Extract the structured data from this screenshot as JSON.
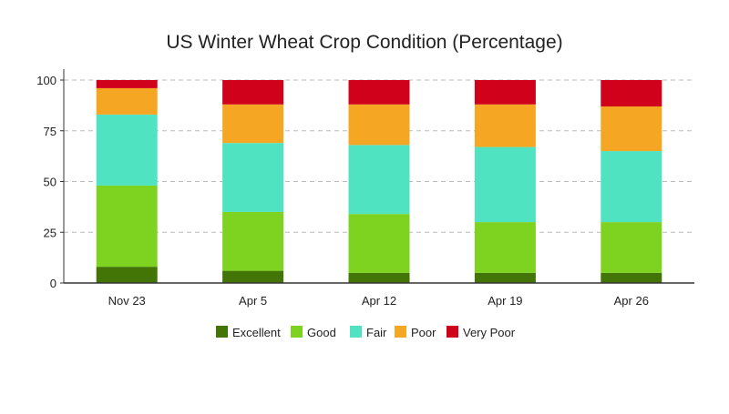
{
  "chart_data": {
    "type": "bar",
    "stacked": true,
    "title": "US Winter Wheat Crop Condition (Percentage)",
    "xlabel": "",
    "ylabel": "",
    "ylim": [
      0,
      100
    ],
    "yticks": [
      0,
      25,
      50,
      75,
      100
    ],
    "grid": true,
    "legend_position": "bottom",
    "categories": [
      "Nov 23",
      "Apr 5",
      "Apr 12",
      "Apr 19",
      "Apr 26"
    ],
    "series": [
      {
        "name": "Excellent",
        "color": "#437506",
        "values": [
          8,
          6,
          5,
          5,
          5
        ]
      },
      {
        "name": "Good",
        "color": "#7ed321",
        "values": [
          40,
          29,
          29,
          25,
          25
        ]
      },
      {
        "name": "Fair",
        "color": "#50e3c2",
        "values": [
          35,
          34,
          34,
          37,
          35
        ]
      },
      {
        "name": "Poor",
        "color": "#f5a623",
        "values": [
          13,
          19,
          20,
          21,
          22
        ]
      },
      {
        "name": "Very Poor",
        "color": "#d0021b",
        "values": [
          4,
          12,
          12,
          12,
          13
        ]
      }
    ]
  }
}
